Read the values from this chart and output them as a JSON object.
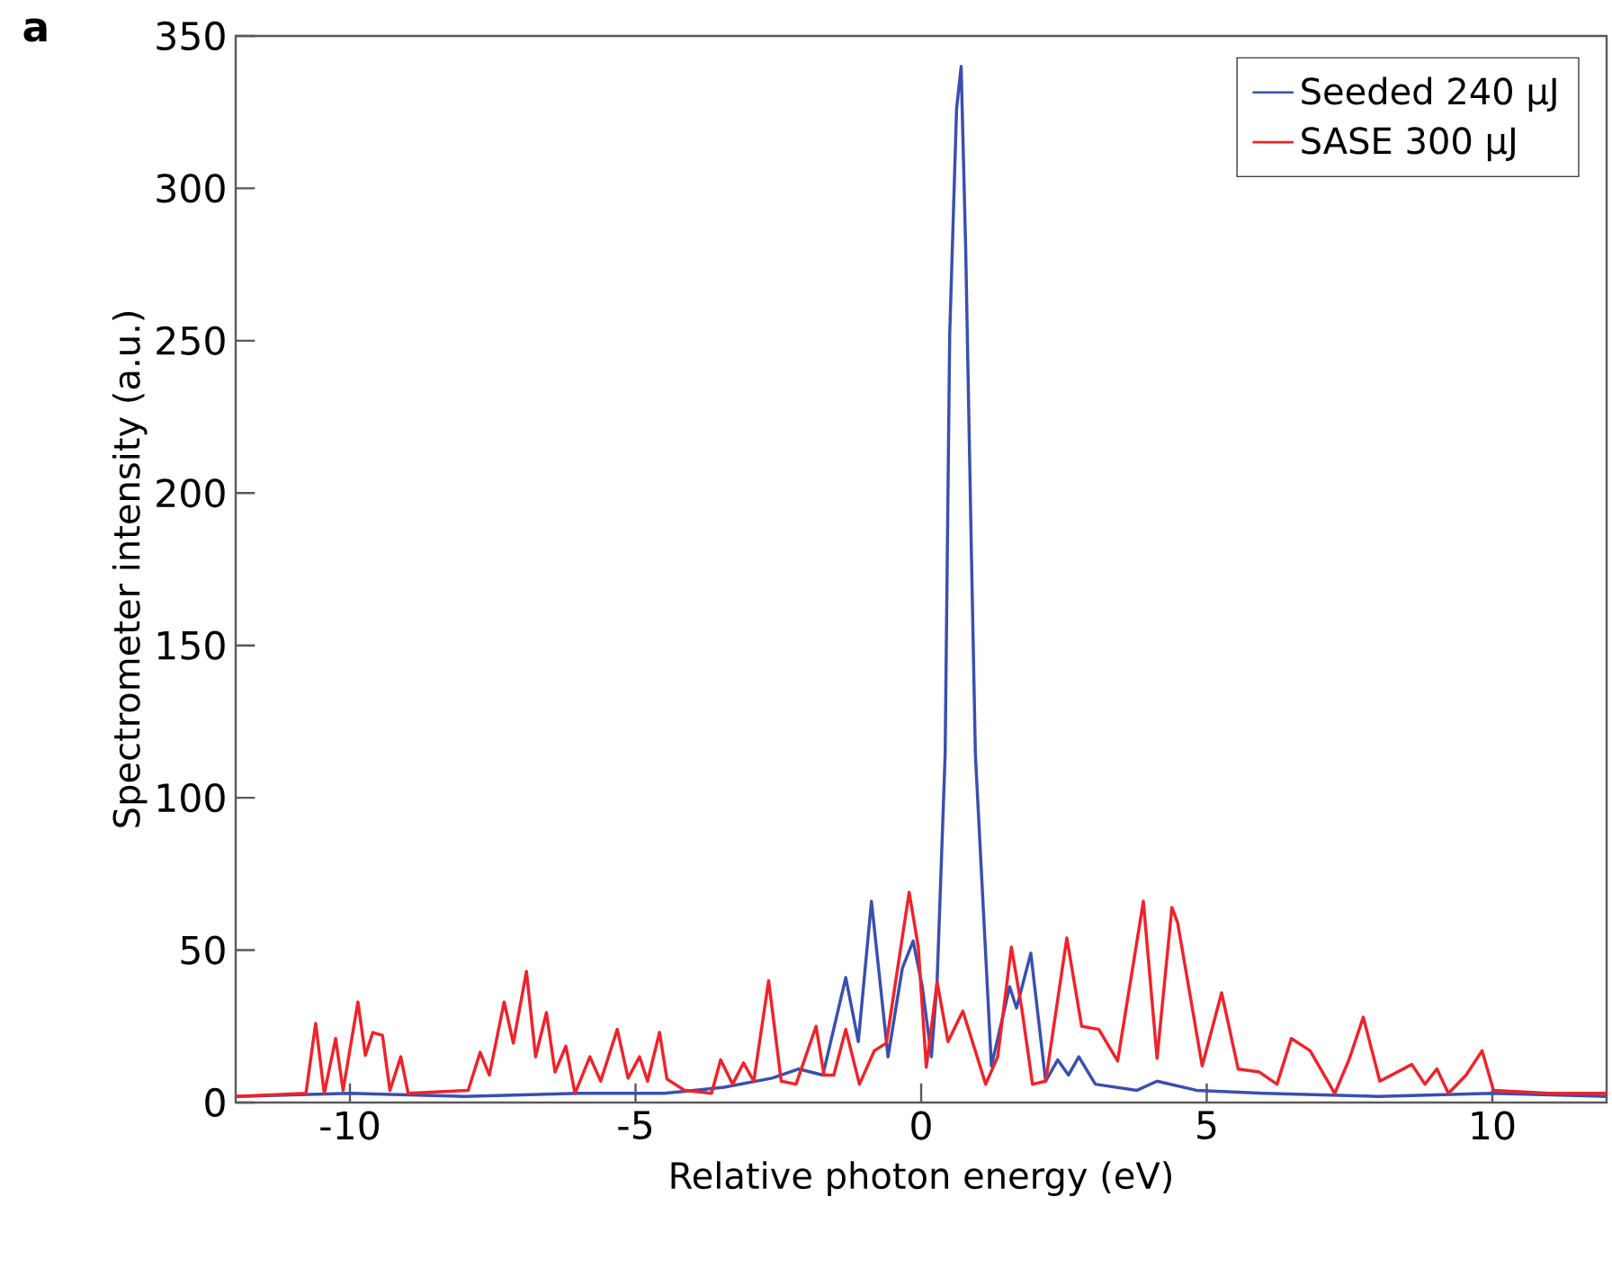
{
  "chart_data": {
    "type": "line",
    "xlabel": "Relative photon energy (eV)",
    "ylabel": "Spectrometer intensity (a.u.)",
    "annotations": [
      "a"
    ],
    "xlim": [
      -12,
      12
    ],
    "ylim": [
      0,
      350
    ],
    "xticks": [
      -10,
      -5,
      0,
      5,
      10
    ],
    "yticks": [
      0,
      50,
      100,
      150,
      200,
      250,
      300,
      350
    ],
    "grid": false,
    "legend": "top right",
    "marker": "none",
    "line_style": "solid",
    "series": [
      {
        "name": "Seeded 240 μJ",
        "color": "#3a4fb0",
        "x": [
          -12,
          -10,
          -8,
          -6,
          -4.5,
          -3.45,
          -2.61,
          -2.14,
          -1.72,
          -1.32,
          -1.1,
          -0.87,
          -0.58,
          -0.33,
          -0.14,
          0.02,
          0.18,
          0.28,
          0.42,
          0.5,
          0.62,
          0.7,
          0.78,
          0.88,
          0.95,
          1.23,
          1.55,
          1.67,
          1.92,
          2.18,
          2.39,
          2.58,
          2.76,
          3.05,
          3.78,
          4.13,
          4.82,
          6,
          8,
          10,
          12
        ],
        "values": [
          2,
          3,
          2,
          3,
          3,
          5,
          8,
          11,
          9,
          41,
          20,
          66,
          15,
          44,
          53,
          38,
          15,
          40,
          114,
          252,
          326,
          340,
          280,
          180,
          114,
          12,
          38,
          31,
          49,
          7,
          14,
          9,
          15,
          6,
          4,
          7,
          4,
          3,
          2,
          3,
          2
        ]
      },
      {
        "name": "SASE 300 μJ",
        "color": "#f0222a",
        "x": [
          -12,
          -10.77,
          -10.6,
          -10.45,
          -10.25,
          -10.12,
          -9.86,
          -9.73,
          -9.6,
          -9.43,
          -9.3,
          -9.11,
          -8.98,
          -7.93,
          -7.72,
          -7.56,
          -7.3,
          -7.14,
          -6.91,
          -6.75,
          -6.56,
          -6.41,
          -6.22,
          -6.06,
          -5.8,
          -5.61,
          -5.32,
          -5.13,
          -4.93,
          -4.79,
          -4.58,
          -4.45,
          -4.14,
          -3.67,
          -3.51,
          -3.3,
          -3.11,
          -2.93,
          -2.67,
          -2.45,
          -2.19,
          -1.84,
          -1.7,
          -1.53,
          -1.32,
          -1.08,
          -0.82,
          -0.61,
          -0.21,
          -0.05,
          0.09,
          0.28,
          0.47,
          0.73,
          1.13,
          1.34,
          1.58,
          1.76,
          1.95,
          2.18,
          2.55,
          2.81,
          3.11,
          3.44,
          3.89,
          4.13,
          4.39,
          4.49,
          4.92,
          5.26,
          5.55,
          5.92,
          6.23,
          6.48,
          6.81,
          7.24,
          7.49,
          7.74,
          8.03,
          8.59,
          8.82,
          9.03,
          9.23,
          9.54,
          9.82,
          10.02,
          11,
          12
        ],
        "values": [
          2,
          3,
          26,
          3,
          21,
          4,
          33,
          15.5,
          23,
          22,
          4,
          15,
          3,
          4,
          16.5,
          9,
          33,
          19.5,
          43,
          15,
          29.5,
          10,
          18.5,
          3,
          15,
          7,
          24,
          8,
          15,
          7,
          23,
          7.7,
          4,
          3,
          14,
          6,
          13,
          7,
          40,
          7,
          6,
          25,
          9,
          9,
          24,
          6,
          17,
          19.5,
          69,
          51,
          11.6,
          39.5,
          20,
          30,
          6,
          15,
          51,
          31,
          6,
          7,
          54,
          25,
          24,
          13.6,
          66,
          14.5,
          64,
          59,
          12,
          36,
          11,
          10,
          6,
          21,
          17,
          3,
          14,
          28,
          7,
          12.5,
          6,
          11,
          3,
          9,
          17,
          4,
          3,
          3
        ]
      }
    ]
  }
}
